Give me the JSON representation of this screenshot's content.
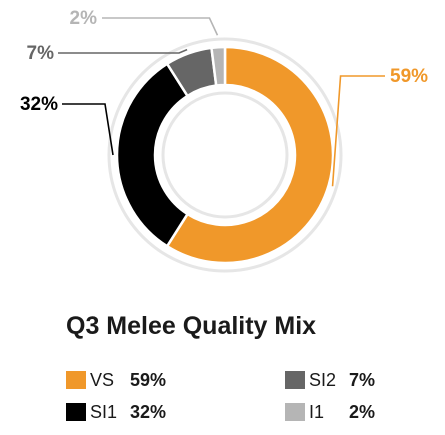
{
  "chart_data": {
    "type": "pie",
    "style": "donut",
    "title": "Q3 Melee Quality Mix",
    "categories": [
      "VS",
      "SI1",
      "SI2",
      "I1"
    ],
    "values": [
      59,
      32,
      7,
      2
    ],
    "value_labels": [
      "59%",
      "32%",
      "7%",
      "2%"
    ],
    "colors": [
      "#f0982a",
      "#000000",
      "#666666",
      "#b5b5b5"
    ],
    "legend_placement": "bottom"
  }
}
